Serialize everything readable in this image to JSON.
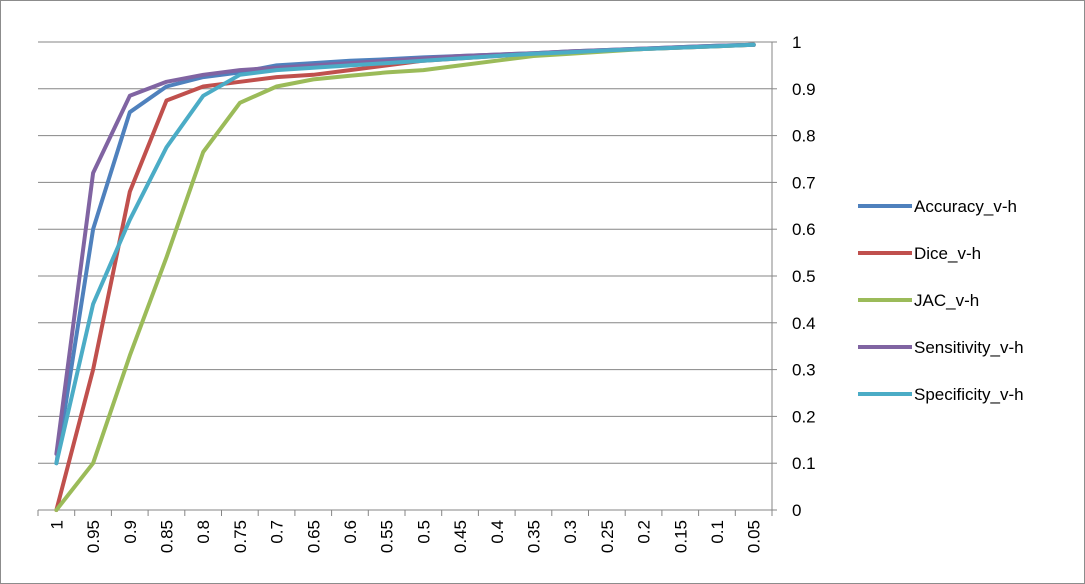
{
  "chart_data": {
    "type": "line",
    "x": [
      "1",
      "0.95",
      "0.9",
      "0.85",
      "0.8",
      "0.75",
      "0.7",
      "0.65",
      "0.6",
      "0.55",
      "0.5",
      "0.45",
      "0.4",
      "0.35",
      "0.3",
      "0.25",
      "0.2",
      "0.15",
      "0.1",
      "0.05"
    ],
    "ylim": [
      0,
      1
    ],
    "yticks": [
      "0",
      "0.1",
      "0.2",
      "0.3",
      "0.4",
      "0.5",
      "0.6",
      "0.7",
      "0.8",
      "0.9",
      "1"
    ],
    "y_axis_side": "right",
    "grid": true,
    "legend_position": "right",
    "series": [
      {
        "name": "Accuracy_v-h",
        "color": "#4F81BD",
        "values": [
          0.1,
          0.6,
          0.85,
          0.905,
          0.925,
          0.935,
          0.95,
          0.955,
          0.96,
          0.963,
          0.967,
          0.97,
          0.973,
          0.976,
          0.98,
          0.983,
          0.986,
          0.989,
          0.992,
          0.994
        ]
      },
      {
        "name": "Dice_v-h",
        "color": "#C0504D",
        "values": [
          0.0,
          0.3,
          0.68,
          0.875,
          0.905,
          0.915,
          0.925,
          0.93,
          0.94,
          0.95,
          0.96,
          0.965,
          0.97,
          0.975,
          0.978,
          0.982,
          0.985,
          0.988,
          0.991,
          0.994
        ]
      },
      {
        "name": "JAC_v-h",
        "color": "#9BBB59",
        "values": [
          0.0,
          0.1,
          0.33,
          0.54,
          0.765,
          0.87,
          0.905,
          0.92,
          0.928,
          0.935,
          0.94,
          0.95,
          0.96,
          0.97,
          0.975,
          0.98,
          0.985,
          0.988,
          0.991,
          0.994
        ]
      },
      {
        "name": "Sensitivity_v-h",
        "color": "#8064A2",
        "values": [
          0.12,
          0.72,
          0.885,
          0.915,
          0.93,
          0.94,
          0.945,
          0.95,
          0.955,
          0.96,
          0.965,
          0.97,
          0.973,
          0.976,
          0.98,
          0.983,
          0.986,
          0.989,
          0.992,
          0.994
        ]
      },
      {
        "name": "Specificity_v-h",
        "color": "#4BACC6",
        "values": [
          0.1,
          0.44,
          0.62,
          0.775,
          0.885,
          0.93,
          0.94,
          0.945,
          0.95,
          0.955,
          0.96,
          0.965,
          0.97,
          0.975,
          0.978,
          0.982,
          0.985,
          0.988,
          0.991,
          0.994
        ]
      }
    ]
  }
}
